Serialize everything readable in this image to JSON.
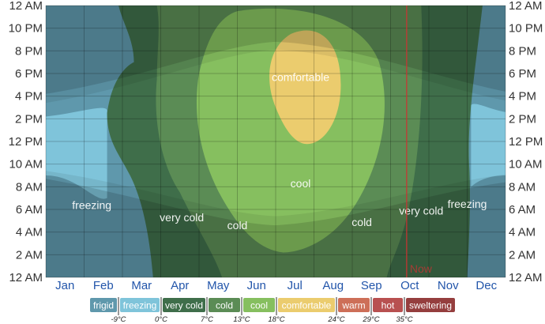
{
  "chart_data": {
    "type": "heatmap",
    "x": {
      "categories": [
        "Jan",
        "Feb",
        "Mar",
        "Apr",
        "May",
        "Jun",
        "Jul",
        "Aug",
        "Sep",
        "Oct",
        "Nov",
        "Dec"
      ]
    },
    "y": {
      "tick_labels": [
        "12 AM",
        "2 AM",
        "4 AM",
        "6 AM",
        "8 AM",
        "10 AM",
        "12 PM",
        "2 PM",
        "4 PM",
        "6 PM",
        "8 PM",
        "10 PM",
        "12 AM"
      ],
      "range_hours": [
        0,
        24
      ]
    },
    "band_labels": [
      {
        "text": "comfortable",
        "month": 6.65,
        "hour": 17.7
      },
      {
        "text": "cool",
        "month": 6.65,
        "hour": 8.3
      },
      {
        "text": "cold",
        "month": 5.0,
        "hour": 4.6
      },
      {
        "text": "cold",
        "month": 8.25,
        "hour": 4.9
      },
      {
        "text": "very cold",
        "month": 3.55,
        "hour": 5.3
      },
      {
        "text": "very cold",
        "month": 9.8,
        "hour": 5.9
      },
      {
        "text": "freezing",
        "month": 1.2,
        "hour": 6.4
      },
      {
        "text": "freezing",
        "month": 11.0,
        "hour": 6.5
      }
    ],
    "now_marker": {
      "label": "Now",
      "month": 9.42
    },
    "legend": [
      {
        "label": "frigid",
        "color": "#5f98ac",
        "threshold": "-9°C"
      },
      {
        "label": "freezing",
        "color": "#7fc4da",
        "threshold": "0°C"
      },
      {
        "label": "very cold",
        "color": "#3f6e4a",
        "threshold": "7°C"
      },
      {
        "label": "cold",
        "color": "#5b8c55",
        "threshold": "13°C"
      },
      {
        "label": "cool",
        "color": "#86bf5f",
        "threshold": "18°C"
      },
      {
        "label": "comfortable",
        "color": "#ebcc6e",
        "threshold": "24°C"
      },
      {
        "label": "warm",
        "color": "#cd6f58",
        "threshold": "29°C"
      },
      {
        "label": "hot",
        "color": "#b85050",
        "threshold": "35°C"
      },
      {
        "label": "sweltering",
        "color": "#953e3e",
        "threshold": ""
      }
    ],
    "grid": true,
    "legend_placement": "bottom"
  }
}
